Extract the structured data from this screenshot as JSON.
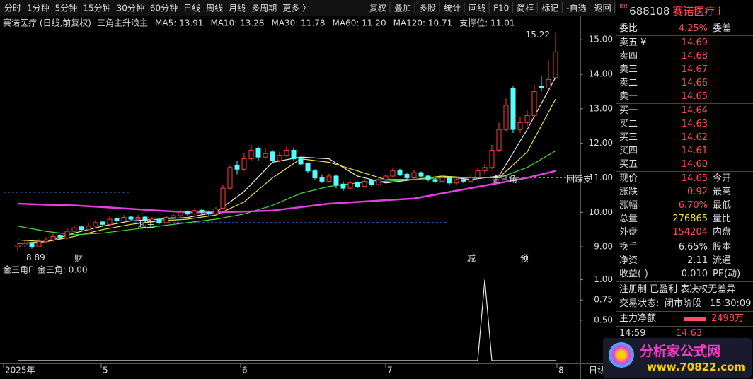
{
  "toolbar": {
    "tabs": [
      "分时",
      "1分钟",
      "5分钟",
      "15分钟",
      "30分钟",
      "60分钟",
      "日线",
      "周线",
      "月线",
      "多周期",
      "更多 〉"
    ],
    "active": 6,
    "buttons": [
      "复权",
      "叠加",
      "多股",
      "统计",
      "画线",
      "F10",
      "简框",
      "标记",
      "-自选",
      "返回"
    ]
  },
  "chart_data": [
    {
      "type": "candlestick",
      "title": "赛诺医疗 (日线,前复权)",
      "legend": [
        {
          "text": "三角主升浪主",
          "color": "#e8e8e8"
        },
        {
          "text": "MA5: 13.91",
          "color": "#e8e8e8"
        },
        {
          "text": "MA10: 13.28",
          "color": "#f0e040"
        },
        {
          "text": "MA30: 11.78",
          "color": "#3ce03c"
        },
        {
          "text": "MA60: 11.20",
          "color": "#e040e0"
        },
        {
          "text": "MA120: 10.71",
          "color": "#40c8e8"
        },
        {
          "text": "支撑位: 11.01",
          "color": "#4a7cff"
        }
      ],
      "candles": [
        [
          9.0,
          9.12,
          8.89,
          9.05
        ],
        [
          9.05,
          9.18,
          9.0,
          9.1
        ],
        [
          9.12,
          9.15,
          8.95,
          9.0
        ],
        [
          9.0,
          9.22,
          8.98,
          9.15
        ],
        [
          9.15,
          9.28,
          9.1,
          9.2
        ],
        [
          9.2,
          9.38,
          9.15,
          9.3
        ],
        [
          9.32,
          9.36,
          9.2,
          9.25
        ],
        [
          9.25,
          9.55,
          9.22,
          9.45
        ],
        [
          9.45,
          9.62,
          9.4,
          9.55
        ],
        [
          9.58,
          9.62,
          9.45,
          9.5
        ],
        [
          9.5,
          9.68,
          9.45,
          9.6
        ],
        [
          9.6,
          9.78,
          9.55,
          9.7
        ],
        [
          9.72,
          9.76,
          9.58,
          9.65
        ],
        [
          9.65,
          9.88,
          9.62,
          9.8
        ],
        [
          9.82,
          9.85,
          9.7,
          9.75
        ],
        [
          9.75,
          9.92,
          9.72,
          9.85
        ],
        [
          9.86,
          9.9,
          9.75,
          9.8
        ],
        [
          9.8,
          9.92,
          9.76,
          9.85
        ],
        [
          9.86,
          9.88,
          9.7,
          9.75
        ],
        [
          9.75,
          9.86,
          9.7,
          9.8
        ],
        [
          9.8,
          9.82,
          9.65,
          9.7
        ],
        [
          9.7,
          9.9,
          9.68,
          9.85
        ],
        [
          9.85,
          9.96,
          9.8,
          9.9
        ],
        [
          9.9,
          10.08,
          9.86,
          10.0
        ],
        [
          10.02,
          10.06,
          9.9,
          9.95
        ],
        [
          9.95,
          10.12,
          9.92,
          10.05
        ],
        [
          10.06,
          10.1,
          9.95,
          10.0
        ],
        [
          10.0,
          10.04,
          9.88,
          9.95
        ],
        [
          9.95,
          10.15,
          9.92,
          10.1
        ],
        [
          10.12,
          10.8,
          10.1,
          10.7
        ],
        [
          10.7,
          11.35,
          10.65,
          11.3
        ],
        [
          11.35,
          11.5,
          11.1,
          11.25
        ],
        [
          11.25,
          11.7,
          11.2,
          11.55
        ],
        [
          11.55,
          11.95,
          11.5,
          11.8
        ],
        [
          11.85,
          11.9,
          11.5,
          11.6
        ],
        [
          11.6,
          11.85,
          11.55,
          11.7
        ],
        [
          11.75,
          11.8,
          11.42,
          11.5
        ],
        [
          11.5,
          11.75,
          11.45,
          11.65
        ],
        [
          11.65,
          11.92,
          11.6,
          11.8
        ],
        [
          11.8,
          11.85,
          11.5,
          11.55
        ],
        [
          11.55,
          11.6,
          11.35,
          11.4
        ],
        [
          11.42,
          11.45,
          11.15,
          11.2
        ],
        [
          11.2,
          11.25,
          10.95,
          11.0
        ],
        [
          11.0,
          11.1,
          10.85,
          10.9
        ],
        [
          10.9,
          11.12,
          10.86,
          11.05
        ],
        [
          11.05,
          11.08,
          10.7,
          10.8
        ],
        [
          10.82,
          10.9,
          10.62,
          10.7
        ],
        [
          10.7,
          10.92,
          10.66,
          10.85
        ],
        [
          10.86,
          10.9,
          10.7,
          10.75
        ],
        [
          10.75,
          10.96,
          10.72,
          10.9
        ],
        [
          10.92,
          10.95,
          10.75,
          10.8
        ],
        [
          10.8,
          11.0,
          10.76,
          10.95
        ],
        [
          10.95,
          11.1,
          10.9,
          11.05
        ],
        [
          11.05,
          11.3,
          11.0,
          11.2
        ],
        [
          11.22,
          11.26,
          11.05,
          11.1
        ],
        [
          11.1,
          11.14,
          10.95,
          11.0
        ],
        [
          11.0,
          11.22,
          10.96,
          11.15
        ],
        [
          11.15,
          11.18,
          11.0,
          11.05
        ],
        [
          11.05,
          11.08,
          10.9,
          10.95
        ],
        [
          10.95,
          11.0,
          10.85,
          10.9
        ],
        [
          10.9,
          11.06,
          10.86,
          11.0
        ],
        [
          11.0,
          11.04,
          10.8,
          10.85
        ],
        [
          10.85,
          11.0,
          10.8,
          10.95
        ],
        [
          10.95,
          10.98,
          10.84,
          10.9
        ],
        [
          10.9,
          11.08,
          10.86,
          11.0
        ],
        [
          11.0,
          11.3,
          10.96,
          11.2
        ],
        [
          11.2,
          11.4,
          11.1,
          11.3
        ],
        [
          11.3,
          11.95,
          11.25,
          11.8
        ],
        [
          11.8,
          12.6,
          11.75,
          12.4
        ],
        [
          12.4,
          13.3,
          12.35,
          13.1
        ],
        [
          13.6,
          13.65,
          12.3,
          12.4
        ],
        [
          12.4,
          12.75,
          12.3,
          12.6
        ],
        [
          12.6,
          12.95,
          12.5,
          12.8
        ],
        [
          12.8,
          13.7,
          12.75,
          13.5
        ],
        [
          13.65,
          13.95,
          13.5,
          13.6
        ],
        [
          13.6,
          14.4,
          13.55,
          13.85
        ],
        [
          13.9,
          15.22,
          13.85,
          14.65
        ]
      ],
      "up_color": "#ff3c3c",
      "down_color": "#54fcfc",
      "x": [
        0,
        4,
        8,
        12,
        16,
        20,
        24,
        28,
        32,
        36,
        40,
        44,
        48,
        52,
        56,
        60,
        64,
        68,
        72,
        76
      ],
      "series": [
        {
          "name": "MA5",
          "color": "#e8e8e8",
          "values": [
            9.1,
            9.15,
            9.4,
            9.6,
            9.75,
            9.8,
            9.85,
            10.0,
            10.6,
            11.45,
            11.6,
            11.55,
            11.05,
            10.85,
            10.95,
            11.05,
            10.95,
            11.05,
            12.4,
            13.91
          ]
        },
        {
          "name": "MA10",
          "color": "#f0e040",
          "values": [
            9.2,
            9.15,
            9.3,
            9.5,
            9.65,
            9.75,
            9.8,
            9.92,
            10.3,
            11.0,
            11.55,
            11.45,
            11.2,
            10.95,
            10.95,
            11.05,
            11.0,
            11.0,
            11.75,
            13.28
          ]
        },
        {
          "name": "MA30",
          "color": "#3ce03c",
          "values": [
            9.6,
            9.45,
            9.35,
            9.4,
            9.5,
            9.6,
            9.7,
            9.8,
            9.95,
            10.2,
            10.55,
            10.75,
            10.85,
            10.9,
            10.95,
            11.0,
            11.0,
            11.0,
            11.3,
            11.78
          ]
        },
        {
          "name": "MA60",
          "color": "#e040e0",
          "values": [
            10.25,
            10.22,
            10.2,
            10.15,
            10.1,
            10.05,
            10.0,
            10.0,
            10.02,
            10.05,
            10.15,
            10.25,
            10.3,
            10.35,
            10.4,
            10.55,
            10.7,
            10.85,
            11.0,
            11.2
          ]
        }
      ],
      "reference_lines": [
        {
          "value": 10.58,
          "from": -2,
          "to": 16,
          "color": "#3a7cd8"
        },
        {
          "value": 9.7,
          "from": 16.5,
          "to": 61,
          "color": "#3a7cd8"
        },
        {
          "value": 11.0,
          "from": 61,
          "to": 79.5,
          "color": "#888888"
        }
      ],
      "annotations": [
        {
          "text": "金三角",
          "x": 67,
          "y": 10.95,
          "color": "#f0e040"
        },
        {
          "text": "回踩支",
          "x": 77.5,
          "y": 10.95,
          "color": "#ff3c3c"
        },
        {
          "text": "起主",
          "x": 17,
          "y": 9.65,
          "color": "#c060ff"
        }
      ],
      "markers": [
        {
          "text": "财",
          "x": 8,
          "color": "#40a0ff"
        },
        {
          "text": "减",
          "x": 63.5,
          "color": "#3ce03c"
        },
        {
          "text": "预",
          "x": 71,
          "color": "#ff9040"
        }
      ],
      "xlim": [
        -2,
        79.5
      ],
      "xticks": [
        {
          "value": -2,
          "label": "2025年"
        },
        {
          "value": 11.8,
          "label": "5"
        },
        {
          "value": 31.5,
          "label": "6"
        },
        {
          "value": 52,
          "label": "7"
        },
        {
          "value": 76.2,
          "label": "8"
        }
      ],
      "ylim": [
        8.53,
        15.23
      ],
      "yticks": [
        {
          "value": 9,
          "label": "9.00"
        },
        {
          "value": 10,
          "label": "10.00"
        },
        {
          "value": 11,
          "label": "11.00"
        },
        {
          "value": 12,
          "label": "12.00"
        },
        {
          "value": 13,
          "label": "13.00"
        },
        {
          "value": 14,
          "label": "14.00"
        },
        {
          "value": 15,
          "label": "15.00"
        }
      ],
      "period": "日线"
    },
    {
      "type": "line",
      "title": "金三角F",
      "legend": "金三角: 0.00",
      "color": "#e8e8e8",
      "values": [
        0,
        0,
        0,
        0,
        0,
        0,
        0,
        0,
        0,
        0,
        0,
        0,
        0,
        0,
        0,
        0,
        0,
        0,
        0,
        0,
        0,
        0,
        0,
        0,
        0,
        0,
        0,
        0,
        0,
        0,
        0,
        0,
        0,
        0,
        0,
        0,
        0,
        0,
        0,
        0,
        0,
        0,
        0,
        0,
        0,
        0,
        0,
        0,
        0,
        0,
        0,
        0,
        0,
        0,
        0,
        0,
        0,
        0,
        0,
        0,
        0,
        0,
        0,
        0,
        0,
        0,
        1,
        0,
        0,
        0,
        0,
        0,
        0,
        0,
        0,
        0,
        0
      ],
      "ylim": [
        0,
        1.18
      ],
      "yticks": [
        {
          "value": 0.5,
          "label": "0.50"
        },
        {
          "value": 0.75,
          "label": "0.75"
        },
        {
          "value": 1,
          "label": "1.00"
        }
      ]
    }
  ],
  "quote": {
    "badge": "KR",
    "code": "688108",
    "name": "赛诺医疗",
    "info": "i",
    "ratio": [
      "委比",
      "4.25%",
      "委差"
    ],
    "asks": [
      [
        "卖五 ¥",
        "14.69"
      ],
      [
        "卖四",
        "14.68"
      ],
      [
        "卖三",
        "14.67"
      ],
      [
        "卖二",
        "14.66"
      ],
      [
        "卖一",
        "14.65"
      ]
    ],
    "bids": [
      [
        "买一",
        "14.64"
      ],
      [
        "买二",
        "14.63"
      ],
      [
        "买三",
        "14.62"
      ],
      [
        "买四",
        "14.61"
      ],
      [
        "买五",
        "14.60"
      ]
    ],
    "stats": [
      [
        "现价",
        "14.65",
        "今开"
      ],
      [
        "涨跌",
        "0.92",
        "最高"
      ],
      [
        "涨幅",
        "6.70%",
        "最低"
      ],
      [
        "总量",
        "276865",
        "量比"
      ],
      [
        "外盘",
        "154204",
        "内盘"
      ]
    ],
    "stats2": [
      [
        "换手",
        "6.65%",
        "股本"
      ],
      [
        "净资",
        "2.11",
        "流通"
      ],
      [
        "收益(-)",
        "0.010",
        "PE(动)"
      ]
    ],
    "flags": "注册制 已盈利 表决权无差异",
    "status": [
      "交易状态:",
      "闭市阶段",
      "15:30:09"
    ],
    "main": [
      "主力净额",
      "2498万"
    ],
    "tick": [
      "14:59",
      "14.63"
    ]
  },
  "logo": {
    "title": "分析家公式网",
    "url": "www.70822.com"
  }
}
